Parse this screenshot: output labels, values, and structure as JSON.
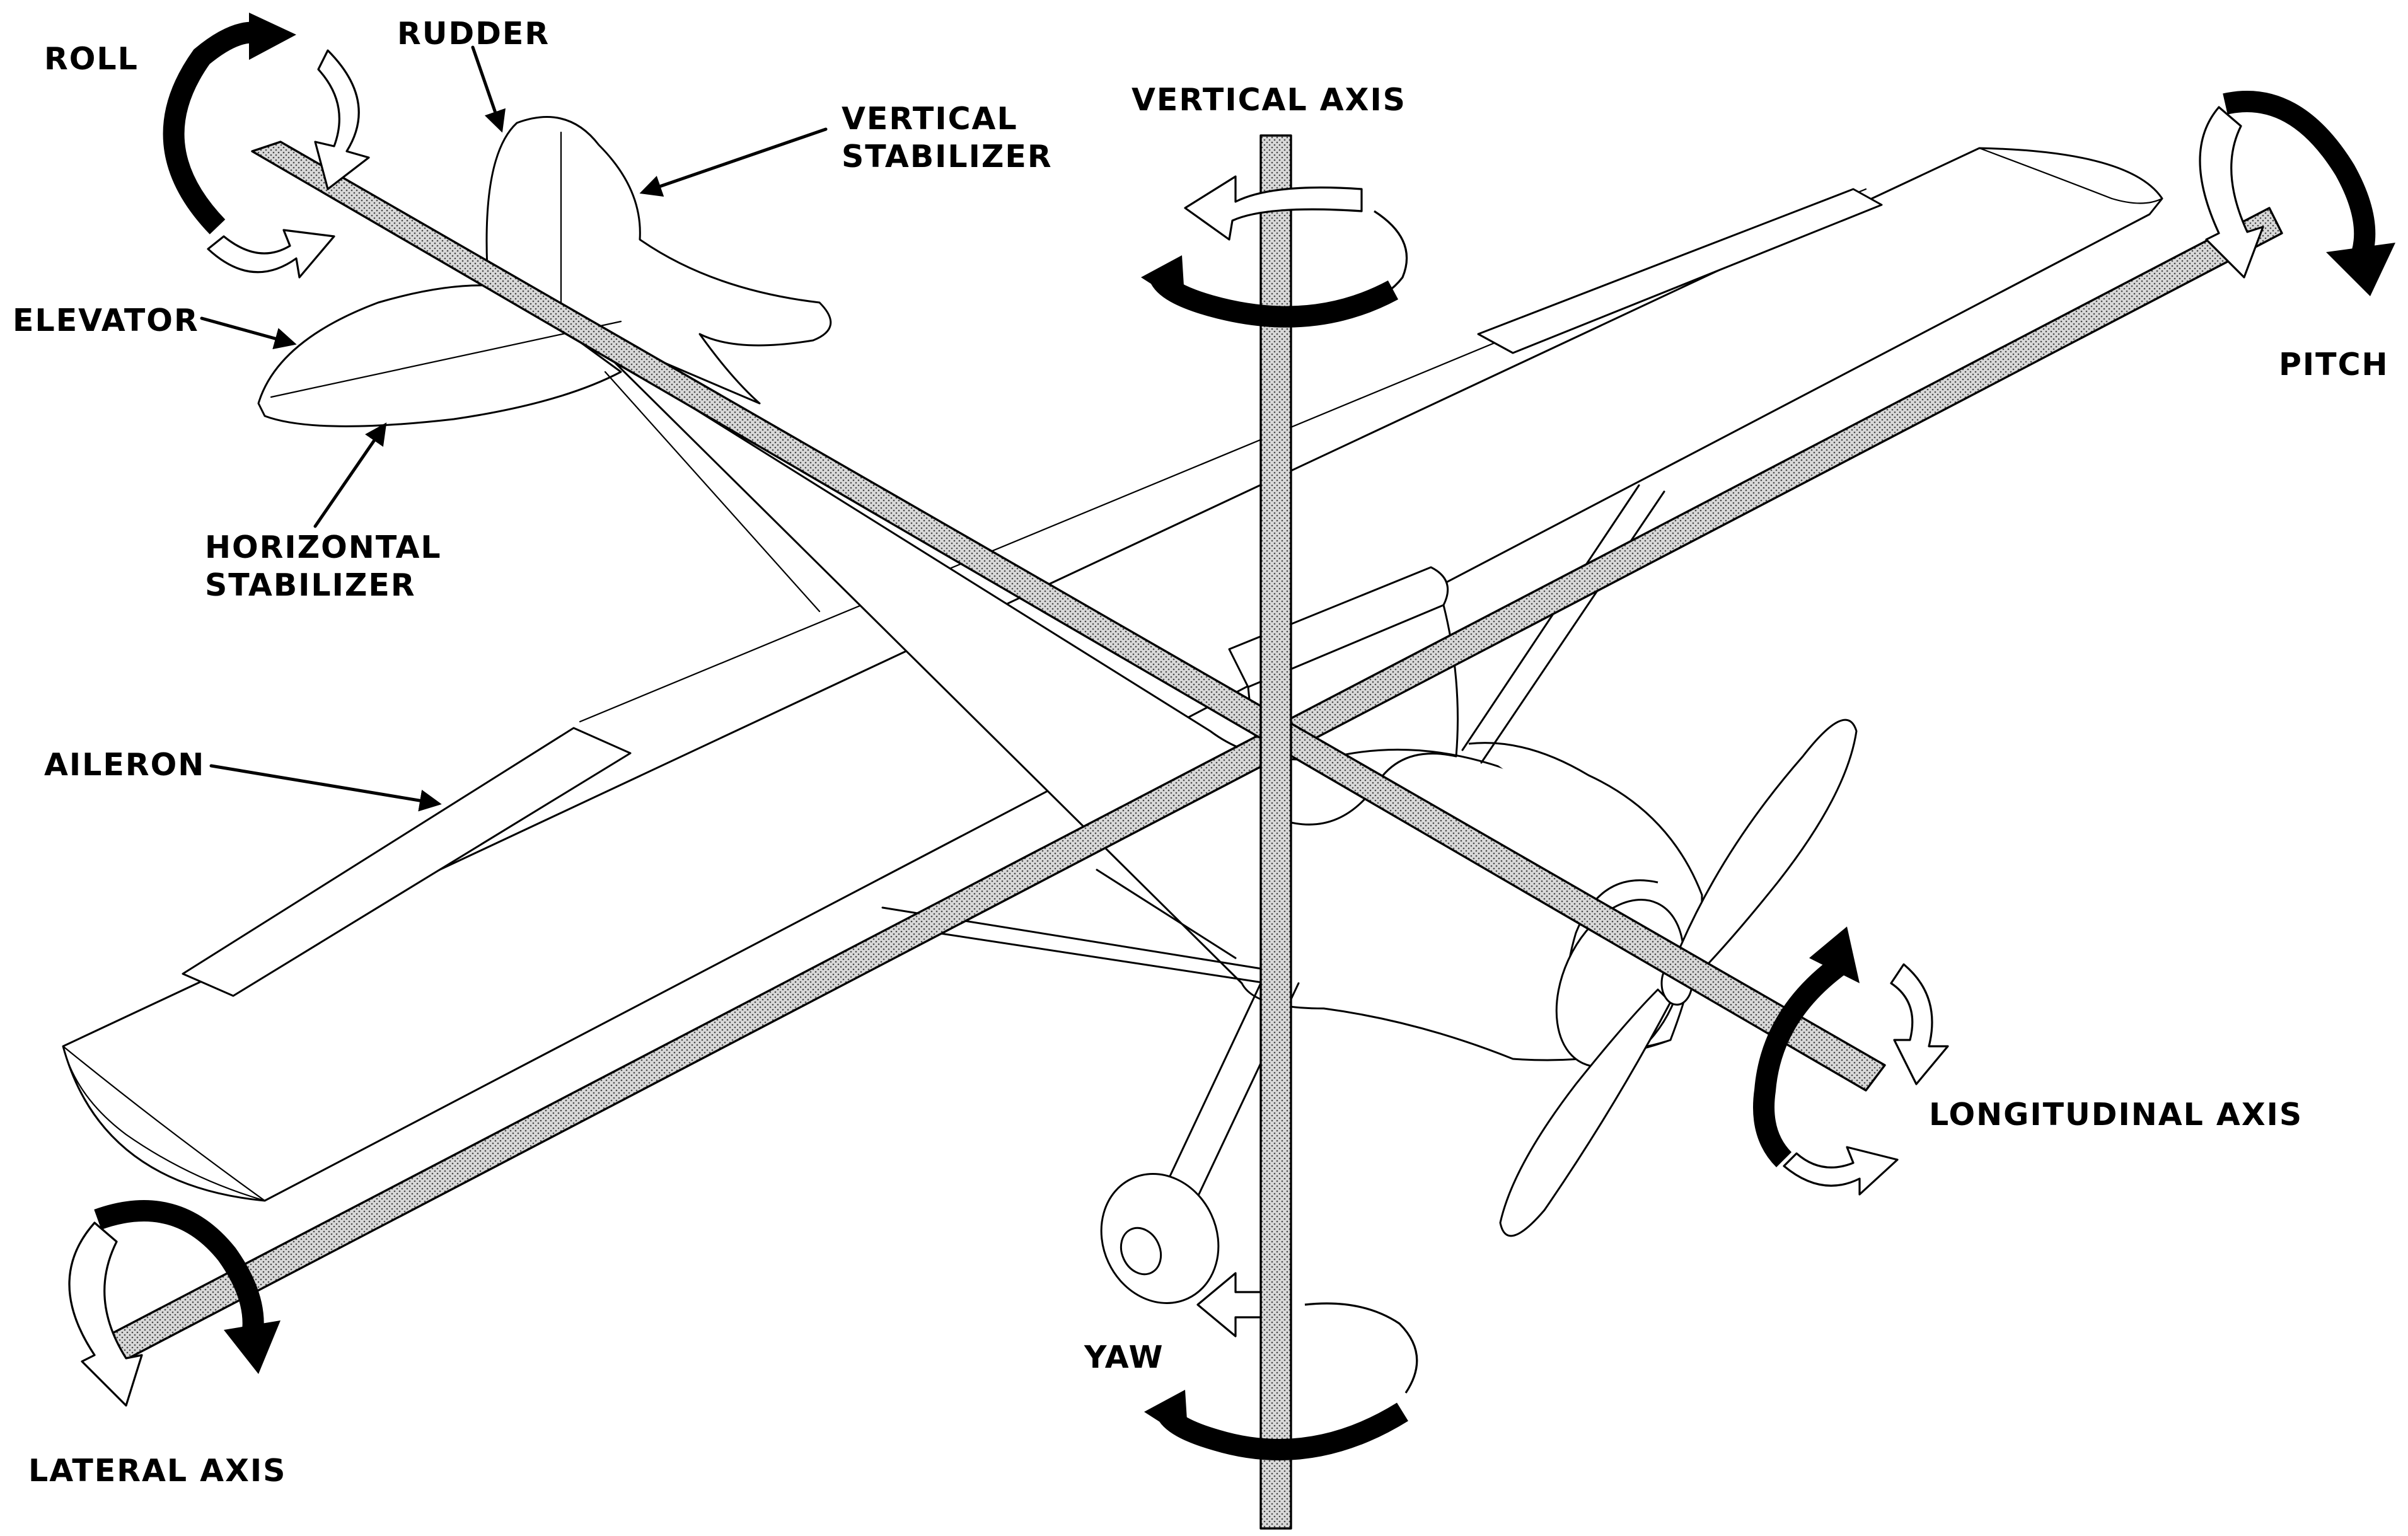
{
  "labels": {
    "roll": "ROLL",
    "rudder": "RUDDER",
    "vertical_stabilizer_line1": "VERTICAL",
    "vertical_stabilizer_line2": "STABILIZER",
    "vertical_axis": "VERTICAL AXIS",
    "pitch": "PITCH",
    "elevator": "ELEVATOR",
    "horizontal_stabilizer_line1": "HORIZONTAL",
    "horizontal_stabilizer_line2": "STABILIZER",
    "aileron": "AILERON",
    "longitudinal_axis": "LONGITUDINAL AXIS",
    "yaw": "YAW",
    "lateral_axis": "LATERAL AXIS"
  },
  "colors": {
    "ink": "#000000",
    "paper": "#ffffff",
    "axis_stipple": "#b0b0b0"
  }
}
